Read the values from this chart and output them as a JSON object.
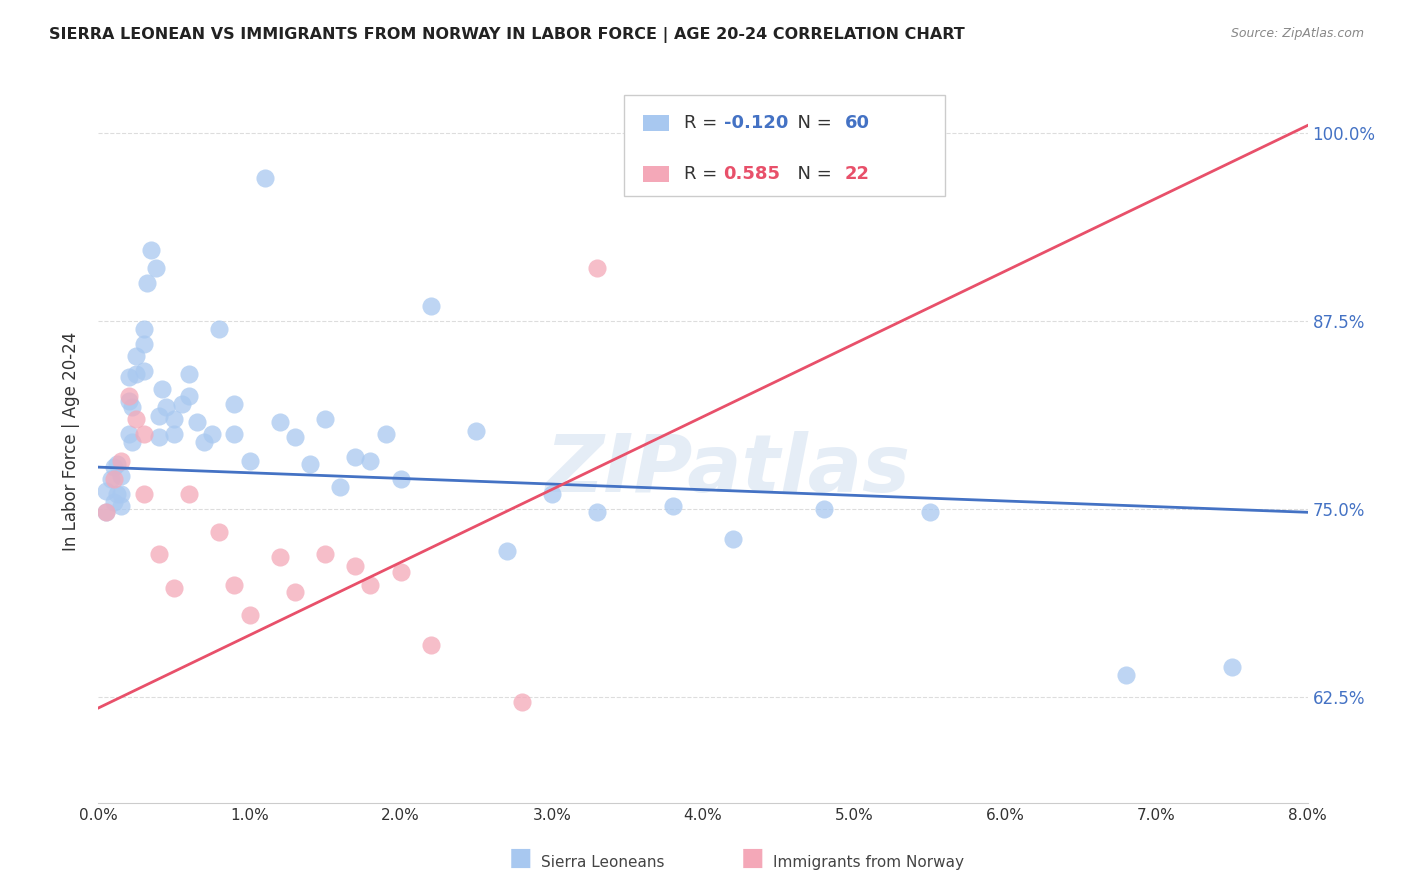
{
  "title": "SIERRA LEONEAN VS IMMIGRANTS FROM NORWAY IN LABOR FORCE | AGE 20-24 CORRELATION CHART",
  "source": "Source: ZipAtlas.com",
  "ylabel": "In Labor Force | Age 20-24",
  "yticks": [
    0.625,
    0.75,
    0.875,
    1.0
  ],
  "ytick_labels": [
    "62.5%",
    "75.0%",
    "87.5%",
    "100.0%"
  ],
  "xticks": [
    0.0,
    0.01,
    0.02,
    0.03,
    0.04,
    0.05,
    0.06,
    0.07,
    0.08
  ],
  "xtick_labels": [
    "0.0%",
    "1.0%",
    "2.0%",
    "3.0%",
    "4.0%",
    "5.0%",
    "6.0%",
    "7.0%",
    "8.0%"
  ],
  "xlim": [
    0.0,
    0.08
  ],
  "ylim": [
    0.555,
    1.035
  ],
  "blue_color": "#A8C8F0",
  "pink_color": "#F4A8B8",
  "blue_line_color": "#4472C4",
  "pink_line_color": "#E8506A",
  "legend_blue_r": "-0.120",
  "legend_blue_n": "60",
  "legend_pink_r": "0.585",
  "legend_pink_n": "22",
  "watermark": "ZIPatlas",
  "blue_x": [
    0.0005,
    0.0005,
    0.0008,
    0.001,
    0.001,
    0.0012,
    0.0012,
    0.0015,
    0.0015,
    0.0015,
    0.002,
    0.002,
    0.002,
    0.0022,
    0.0022,
    0.0025,
    0.0025,
    0.003,
    0.003,
    0.003,
    0.0032,
    0.0035,
    0.0038,
    0.004,
    0.004,
    0.0042,
    0.0045,
    0.005,
    0.005,
    0.0055,
    0.006,
    0.006,
    0.0065,
    0.007,
    0.0075,
    0.008,
    0.009,
    0.009,
    0.01,
    0.011,
    0.012,
    0.013,
    0.014,
    0.015,
    0.016,
    0.017,
    0.018,
    0.019,
    0.02,
    0.022,
    0.025,
    0.027,
    0.03,
    0.033,
    0.038,
    0.042,
    0.048,
    0.055,
    0.068,
    0.075
  ],
  "blue_y": [
    0.762,
    0.748,
    0.77,
    0.778,
    0.755,
    0.78,
    0.76,
    0.772,
    0.76,
    0.752,
    0.838,
    0.822,
    0.8,
    0.818,
    0.795,
    0.852,
    0.84,
    0.87,
    0.86,
    0.842,
    0.9,
    0.922,
    0.91,
    0.812,
    0.798,
    0.83,
    0.818,
    0.81,
    0.8,
    0.82,
    0.84,
    0.825,
    0.808,
    0.795,
    0.8,
    0.87,
    0.8,
    0.82,
    0.782,
    0.97,
    0.808,
    0.798,
    0.78,
    0.81,
    0.765,
    0.785,
    0.782,
    0.8,
    0.77,
    0.885,
    0.802,
    0.722,
    0.76,
    0.748,
    0.752,
    0.73,
    0.75,
    0.748,
    0.64,
    0.645
  ],
  "pink_x": [
    0.0005,
    0.001,
    0.0015,
    0.002,
    0.0025,
    0.003,
    0.003,
    0.004,
    0.005,
    0.006,
    0.008,
    0.009,
    0.01,
    0.012,
    0.013,
    0.015,
    0.017,
    0.018,
    0.02,
    0.022,
    0.028,
    0.033
  ],
  "pink_y": [
    0.748,
    0.77,
    0.782,
    0.825,
    0.81,
    0.8,
    0.76,
    0.72,
    0.698,
    0.76,
    0.735,
    0.7,
    0.68,
    0.718,
    0.695,
    0.72,
    0.712,
    0.7,
    0.708,
    0.66,
    0.622,
    0.91
  ],
  "blue_line_x": [
    0.0,
    0.08
  ],
  "blue_line_y": [
    0.778,
    0.748
  ],
  "pink_line_x": [
    0.0,
    0.08
  ],
  "pink_line_y": [
    0.618,
    1.005
  ]
}
